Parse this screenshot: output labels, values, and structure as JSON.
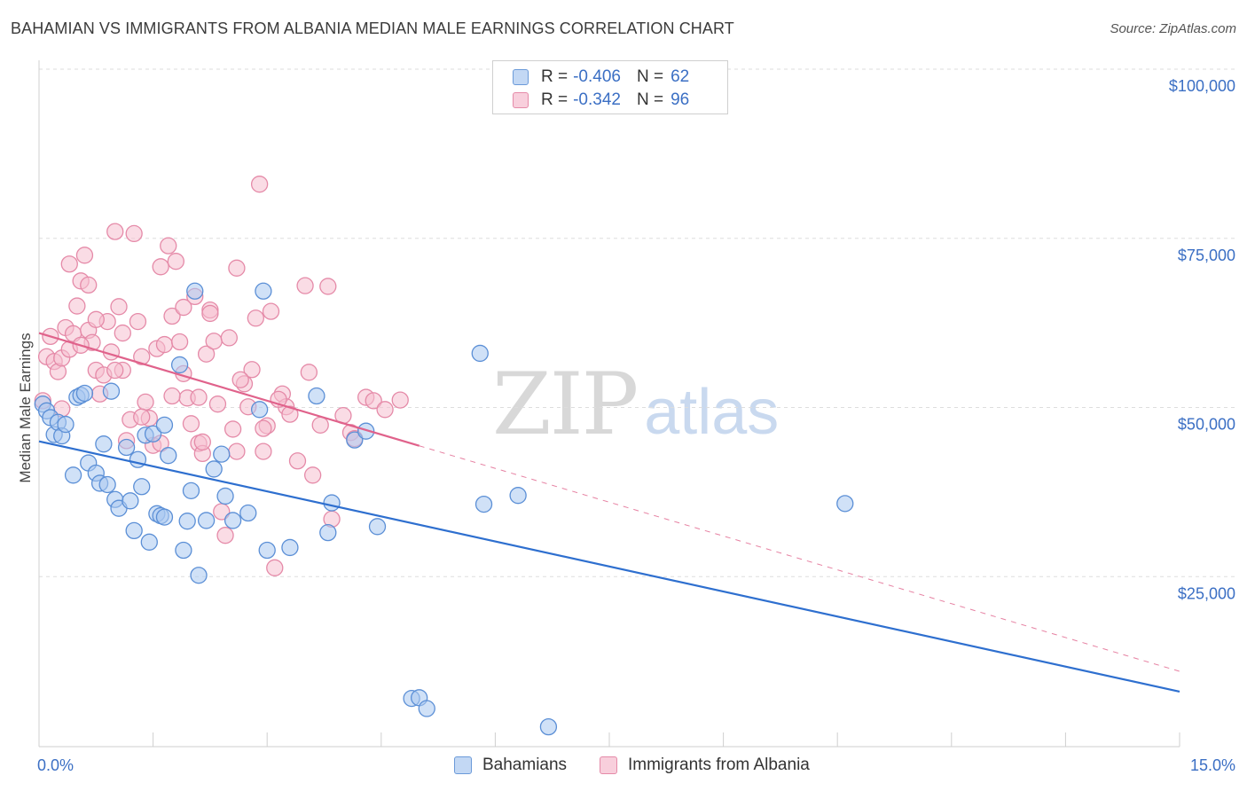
{
  "header": {
    "title": "BAHAMIAN VS IMMIGRANTS FROM ALBANIA MEDIAN MALE EARNINGS CORRELATION CHART",
    "source": "Source: ZipAtlas.com"
  },
  "watermark": {
    "zip": "ZIP",
    "atlas": "atlas"
  },
  "legend_stats": [
    {
      "r_label": "R =",
      "r_value": "-0.406",
      "n_label": "N =",
      "n_value": "62"
    },
    {
      "r_label": "R =",
      "r_value": "-0.342",
      "n_label": "N =",
      "n_value": "96"
    }
  ],
  "colors": {
    "blue_fill": "#a9c8f0",
    "blue_stroke": "#5b8fd6",
    "blue_line": "#2e6fcf",
    "pink_fill": "#f6bfd0",
    "pink_stroke": "#e58aa8",
    "pink_line": "#e0628b",
    "tick_text": "#3b6fc4",
    "grid": "#dddddd"
  },
  "chart_data": {
    "type": "scatter",
    "title": "BAHAMIAN VS IMMIGRANTS FROM ALBANIA MEDIAN MALE EARNINGS CORRELATION CHART",
    "xlabel": "",
    "ylabel": "Median Male Earnings",
    "xlim": [
      0,
      15
    ],
    "ylim": [
      0,
      105000
    ],
    "x_tick_labels": {
      "left": "0.0%",
      "right": "15.0%"
    },
    "y_ticks": [
      {
        "value": 100000,
        "label": "$100,000"
      },
      {
        "value": 75000,
        "label": "$75,000"
      },
      {
        "value": 50000,
        "label": "$50,000"
      },
      {
        "value": 25000,
        "label": "$25,000"
      }
    ],
    "legend_position": "bottom-center",
    "series": [
      {
        "name": "Bahamians",
        "color": "blue",
        "r": -0.406,
        "n": 62,
        "trend": {
          "x": [
            0,
            15
          ],
          "y": [
            45000,
            8000
          ],
          "dashed_from": null
        },
        "points": [
          [
            0.05,
            50500
          ],
          [
            0.1,
            49500
          ],
          [
            0.15,
            48500
          ],
          [
            0.2,
            46000
          ],
          [
            0.25,
            47800
          ],
          [
            0.3,
            45800
          ],
          [
            0.35,
            47500
          ],
          [
            0.45,
            40000
          ],
          [
            0.5,
            51500
          ],
          [
            0.55,
            51800
          ],
          [
            0.6,
            52100
          ],
          [
            0.65,
            41800
          ],
          [
            0.75,
            40300
          ],
          [
            0.8,
            38800
          ],
          [
            0.85,
            44600
          ],
          [
            0.9,
            38600
          ],
          [
            0.95,
            52400
          ],
          [
            1.0,
            36400
          ],
          [
            1.05,
            35100
          ],
          [
            1.15,
            44100
          ],
          [
            1.2,
            36200
          ],
          [
            1.25,
            31800
          ],
          [
            1.3,
            42300
          ],
          [
            1.35,
            38300
          ],
          [
            1.4,
            45900
          ],
          [
            1.45,
            30100
          ],
          [
            1.5,
            46100
          ],
          [
            1.55,
            34300
          ],
          [
            1.6,
            34000
          ],
          [
            1.65,
            47400
          ],
          [
            1.65,
            33800
          ],
          [
            1.7,
            42900
          ],
          [
            1.85,
            56300
          ],
          [
            1.9,
            28900
          ],
          [
            1.95,
            33200
          ],
          [
            2.0,
            37700
          ],
          [
            2.05,
            67200
          ],
          [
            2.1,
            25200
          ],
          [
            2.2,
            33300
          ],
          [
            2.3,
            40900
          ],
          [
            2.4,
            43100
          ],
          [
            2.45,
            36900
          ],
          [
            2.55,
            33300
          ],
          [
            2.75,
            34400
          ],
          [
            2.9,
            49700
          ],
          [
            2.95,
            67200
          ],
          [
            3.0,
            28900
          ],
          [
            3.3,
            29300
          ],
          [
            3.65,
            51700
          ],
          [
            3.8,
            31500
          ],
          [
            3.85,
            35900
          ],
          [
            4.15,
            45200
          ],
          [
            4.3,
            46500
          ],
          [
            4.45,
            32400
          ],
          [
            4.9,
            7000
          ],
          [
            5.0,
            7100
          ],
          [
            5.1,
            5500
          ],
          [
            5.8,
            58000
          ],
          [
            5.85,
            35700
          ],
          [
            6.3,
            37000
          ],
          [
            6.7,
            2800
          ],
          [
            10.6,
            35800
          ]
        ]
      },
      {
        "name": "Immigrants from Albania",
        "color": "pink",
        "r": -0.342,
        "n": 96,
        "trend": {
          "x": [
            0,
            15
          ],
          "y": [
            61000,
            11000
          ],
          "dashed_from": 5.0
        },
        "points": [
          [
            0.05,
            51000
          ],
          [
            0.1,
            57500
          ],
          [
            0.15,
            60500
          ],
          [
            0.2,
            56800
          ],
          [
            0.25,
            55300
          ],
          [
            0.3,
            57300
          ],
          [
            0.3,
            49800
          ],
          [
            0.35,
            61800
          ],
          [
            0.4,
            71200
          ],
          [
            0.45,
            60900
          ],
          [
            0.5,
            65000
          ],
          [
            0.55,
            68700
          ],
          [
            0.6,
            72500
          ],
          [
            0.65,
            68100
          ],
          [
            0.65,
            61400
          ],
          [
            0.7,
            59600
          ],
          [
            0.75,
            55500
          ],
          [
            0.8,
            52000
          ],
          [
            0.85,
            54800
          ],
          [
            0.9,
            62700
          ],
          [
            0.95,
            58200
          ],
          [
            1.0,
            76000
          ],
          [
            1.05,
            64900
          ],
          [
            1.1,
            61000
          ],
          [
            1.1,
            55500
          ],
          [
            1.15,
            45100
          ],
          [
            1.2,
            48200
          ],
          [
            1.25,
            75700
          ],
          [
            1.3,
            62700
          ],
          [
            1.35,
            57500
          ],
          [
            1.4,
            50800
          ],
          [
            1.45,
            48400
          ],
          [
            1.5,
            44400
          ],
          [
            1.55,
            58700
          ],
          [
            1.6,
            70800
          ],
          [
            1.65,
            59300
          ],
          [
            1.7,
            73900
          ],
          [
            1.75,
            63500
          ],
          [
            1.8,
            71600
          ],
          [
            1.85,
            59700
          ],
          [
            1.9,
            55000
          ],
          [
            1.95,
            51400
          ],
          [
            2.0,
            47600
          ],
          [
            2.05,
            66400
          ],
          [
            2.1,
            51500
          ],
          [
            2.1,
            44700
          ],
          [
            2.15,
            43200
          ],
          [
            2.2,
            57900
          ],
          [
            2.25,
            64400
          ],
          [
            2.3,
            59800
          ],
          [
            2.35,
            50500
          ],
          [
            2.4,
            34600
          ],
          [
            2.45,
            31100
          ],
          [
            2.5,
            60300
          ],
          [
            2.55,
            46800
          ],
          [
            2.6,
            70600
          ],
          [
            2.6,
            43500
          ],
          [
            2.7,
            53500
          ],
          [
            2.75,
            50100
          ],
          [
            2.8,
            55600
          ],
          [
            2.85,
            63200
          ],
          [
            2.9,
            83000
          ],
          [
            2.95,
            43500
          ],
          [
            3.0,
            47300
          ],
          [
            3.05,
            64200
          ],
          [
            3.1,
            26300
          ],
          [
            3.2,
            52000
          ],
          [
            3.25,
            50100
          ],
          [
            3.3,
            49000
          ],
          [
            3.4,
            42100
          ],
          [
            3.5,
            68000
          ],
          [
            3.55,
            55200
          ],
          [
            3.6,
            40000
          ],
          [
            3.7,
            47400
          ],
          [
            3.8,
            67900
          ],
          [
            3.85,
            33500
          ],
          [
            4.0,
            48800
          ],
          [
            4.1,
            46300
          ],
          [
            4.15,
            45400
          ],
          [
            4.3,
            51500
          ],
          [
            4.4,
            51000
          ],
          [
            4.55,
            49700
          ],
          [
            4.75,
            51100
          ],
          [
            0.4,
            58600
          ],
          [
            0.55,
            59200
          ],
          [
            1.9,
            64800
          ],
          [
            2.25,
            63900
          ],
          [
            1.6,
            44700
          ],
          [
            1.75,
            51700
          ],
          [
            2.15,
            44900
          ],
          [
            2.95,
            46900
          ],
          [
            3.15,
            51200
          ],
          [
            1.0,
            55500
          ],
          [
            1.35,
            48600
          ],
          [
            0.75,
            63000
          ],
          [
            2.65,
            54100
          ]
        ]
      }
    ]
  },
  "bottom_legend": [
    {
      "label": "Bahamians"
    },
    {
      "label": "Immigrants from Albania"
    }
  ]
}
